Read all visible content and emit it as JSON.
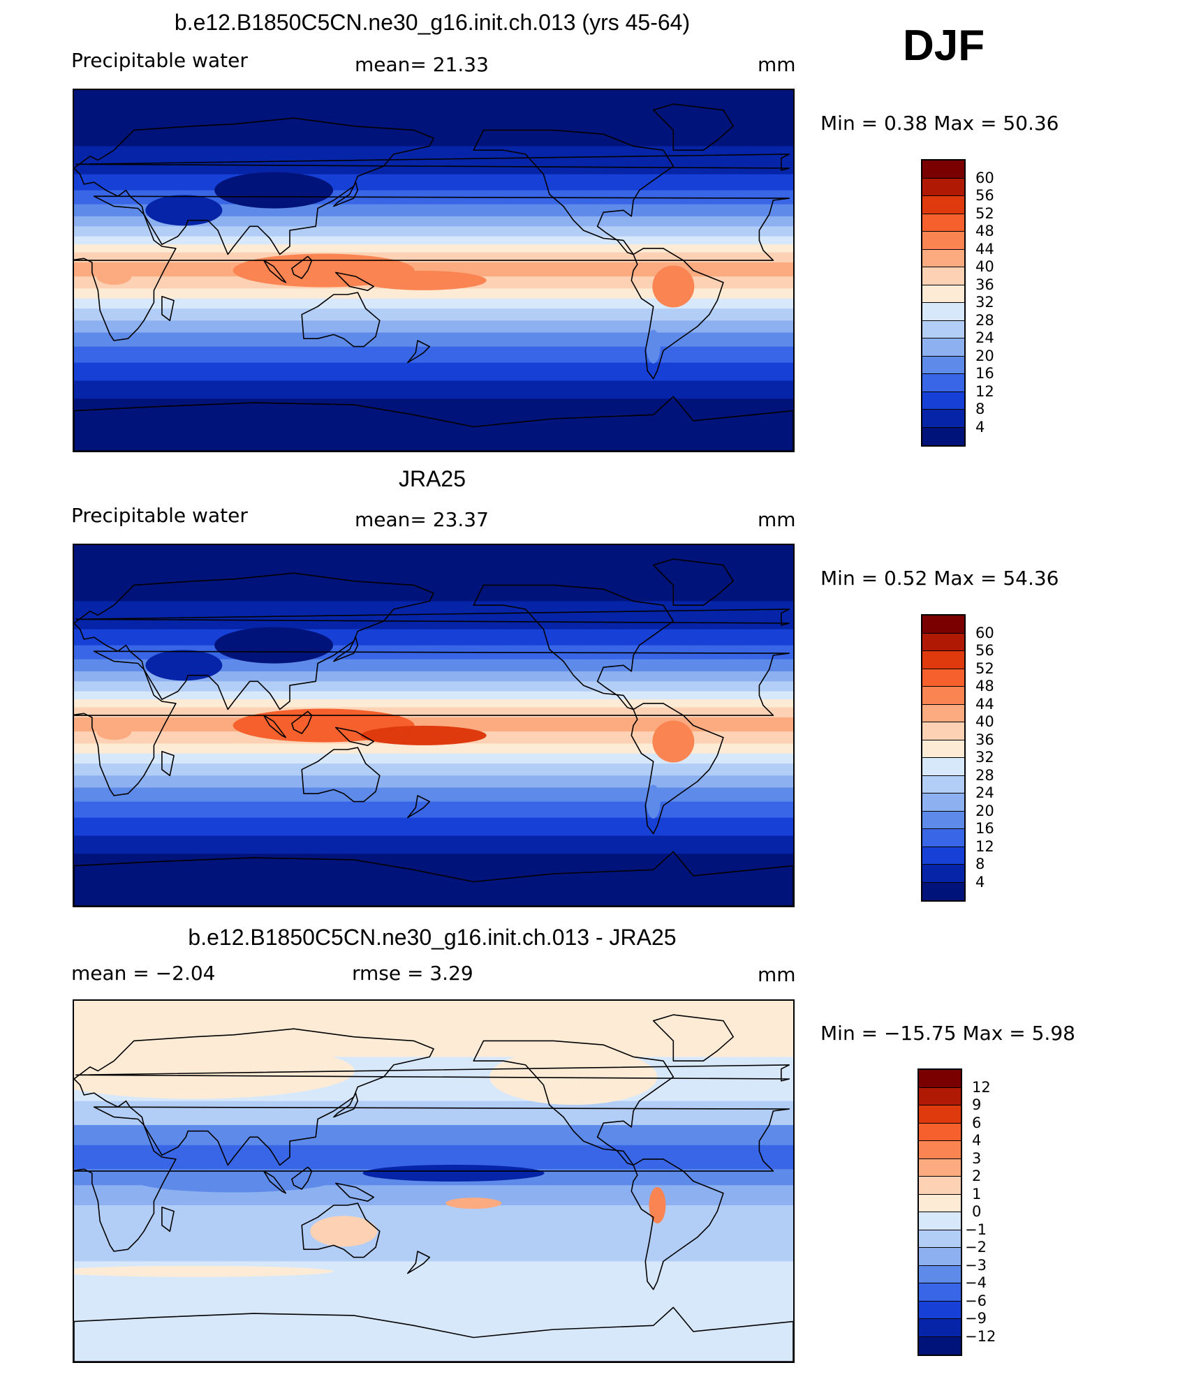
{
  "season": "DJF",
  "unit": "mm",
  "panels": [
    {
      "title": "b.e12.B1850C5CN.ne30_g16.init.ch.013 (yrs 45-64)",
      "left_label": "Precipitable  water",
      "mid_label": "mean=   21.33",
      "minmax": "Min  =     0.38  Max  =    50.36",
      "levels": [
        "60",
        "56",
        "52",
        "48",
        "44",
        "40",
        "36",
        "32",
        "28",
        "24",
        "20",
        "16",
        "12",
        "8",
        "4"
      ],
      "kind": "model"
    },
    {
      "title": "JRA25",
      "left_label": "Precipitable  water",
      "mid_label": "mean=   23.37",
      "minmax": "Min  =     0.52  Max  =    54.36",
      "levels": [
        "60",
        "56",
        "52",
        "48",
        "44",
        "40",
        "36",
        "32",
        "28",
        "24",
        "20",
        "16",
        "12",
        "8",
        "4"
      ],
      "kind": "obs"
    },
    {
      "title": "b.e12.B1850C5CN.ne30_g16.init.ch.013 - JRA25",
      "left_label": "mean  =    −2.04",
      "mid_label": "rmse  =     3.29",
      "minmax": "Min  =  −15.75  Max  =     5.98",
      "levels": [
        "12",
        "9",
        "6",
        "4",
        "3",
        "2",
        "1",
        "0",
        "−1",
        "−2",
        "−3",
        "−4",
        "−6",
        "−9",
        "−12"
      ],
      "kind": "diff"
    }
  ],
  "colors": {
    "pw_scale": [
      "#7a0000",
      "#b01a05",
      "#de3a0e",
      "#f5602c",
      "#fb8552",
      "#fcab80",
      "#fdd2b4",
      "#fdebd6",
      "#d8e8fb",
      "#b3cef6",
      "#8cb0f0",
      "#5e8bea",
      "#3866e6",
      "#1640d6",
      "#0524a8",
      "#00137a"
    ],
    "diff_scale": [
      "#7a0000",
      "#b01a05",
      "#de3a0e",
      "#f5602c",
      "#fb8552",
      "#fcab80",
      "#fdd2b4",
      "#fdebd6",
      "#d8e8fb",
      "#b3cef6",
      "#8cb0f0",
      "#5e8bea",
      "#3866e6",
      "#1640d6",
      "#0524a8",
      "#00137a"
    ]
  }
}
